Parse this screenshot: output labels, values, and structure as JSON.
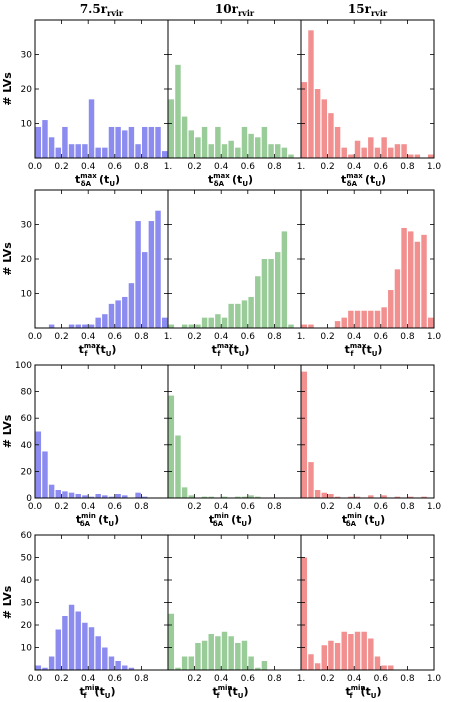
{
  "chart_data": {
    "type": "bar",
    "layout": "4x3 grid of histograms",
    "column_titles": [
      "7.5r",
      "10r",
      "15r"
    ],
    "column_title_subscript": "rvir",
    "ylabel": "# LVs",
    "colors": [
      "#8c8cf0",
      "#99cc99",
      "#f29090"
    ],
    "bin_edges_start": 0.0,
    "bin_width": 0.05,
    "xlim": [
      0.0,
      1.0
    ],
    "rows": [
      {
        "ylim": [
          0,
          40
        ],
        "yticks": [
          "10",
          "20",
          "30"
        ],
        "xlabel_base": "t",
        "xlabel_sup": "max",
        "xlabel_sub": "δA",
        "xlabel_tail": "(t",
        "xlabel_tail_sub": "U",
        "xlabel_close": ")",
        "panels": [
          {
            "xticks": [
              "0.0",
              "0.2",
              "0.4",
              "0.6",
              "0.8",
              "1."
            ],
            "values": [
              9,
              11,
              6,
              3,
              9,
              4,
              4,
              4,
              17,
              3,
              3,
              9,
              9,
              8,
              9,
              4,
              9,
              9,
              9,
              2
            ]
          },
          {
            "xticks": [
              "0.2",
              "0.4",
              "0.6",
              "0.8",
              "1."
            ],
            "values": [
              17,
              27,
              12,
              8,
              6,
              9,
              4,
              9,
              4,
              5,
              3,
              9,
              7,
              6,
              9,
              4,
              4,
              3,
              1,
              0
            ]
          },
          {
            "xticks": [
              "0.2",
              "0.4",
              "0.6",
              "0.8",
              "1.0"
            ],
            "values": [
              22,
              37,
              20,
              17,
              13,
              9,
              3,
              1,
              5,
              3,
              6,
              3,
              6,
              3,
              4,
              4,
              1,
              1,
              0,
              1
            ]
          }
        ]
      },
      {
        "ylim": [
          0,
          40
        ],
        "yticks": [
          "10",
          "20",
          "30"
        ],
        "xlabel_base": "t",
        "xlabel_sup": "max",
        "xlabel_sub": "f",
        "xlabel_tail": "(t",
        "xlabel_tail_sub": "U",
        "xlabel_close": ")",
        "panels": [
          {
            "xticks": [
              "0.0",
              "0.2",
              "0.4",
              "0.6",
              "0.8",
              "1."
            ],
            "values": [
              0,
              0,
              1,
              0,
              0,
              1,
              1,
              1,
              1,
              3,
              4,
              7,
              8,
              9,
              13,
              31,
              22,
              31,
              34,
              3
            ]
          },
          {
            "xticks": [
              "0.2",
              "0.4",
              "0.6",
              "0.8",
              "1."
            ],
            "values": [
              1,
              0,
              1,
              1,
              1,
              3,
              3,
              4,
              3,
              7,
              7,
              8,
              9,
              15,
              20,
              20,
              22,
              28,
              1,
              0
            ]
          },
          {
            "xticks": [
              "0.2",
              "0.4",
              "0.6",
              "0.8",
              "1.0"
            ],
            "values": [
              1,
              1,
              0,
              0,
              0,
              2,
              3,
              5,
              5,
              5,
              5,
              5,
              6,
              11,
              17,
              29,
              28,
              25,
              27,
              3
            ]
          }
        ]
      },
      {
        "ylim": [
          0,
          100
        ],
        "yticks": [
          "0",
          "20",
          "40",
          "60",
          "80",
          "100"
        ],
        "xlabel_base": "t",
        "xlabel_sup": "min",
        "xlabel_sub": "δA",
        "xlabel_tail": "(t",
        "xlabel_tail_sub": "U",
        "xlabel_close": ")",
        "panels": [
          {
            "xticks": [
              "0.0",
              "0.2",
              "0.4",
              "0.6",
              "0.8"
            ],
            "values": [
              50,
              35,
              10,
              6,
              5,
              4,
              3,
              2,
              1,
              3,
              2,
              1,
              3,
              2,
              0,
              4,
              1,
              0,
              0,
              0
            ]
          },
          {
            "xticks": [
              "0.2",
              "0.4",
              "0.6",
              "0.8"
            ],
            "values": [
              77,
              47,
              8,
              2,
              0,
              1,
              1,
              0,
              1,
              0,
              1,
              1,
              2,
              1,
              0,
              0,
              0,
              0,
              0,
              0
            ]
          },
          {
            "xticks": [
              "0.2",
              "0.4",
              "0.6",
              "0.8",
              "1.0"
            ],
            "values": [
              95,
              27,
              6,
              4,
              3,
              1,
              0,
              1,
              1,
              0,
              2,
              0,
              2,
              0,
              1,
              0,
              1,
              0,
              1,
              0
            ]
          }
        ]
      },
      {
        "ylim": [
          0,
          60
        ],
        "yticks": [
          "10",
          "20",
          "30",
          "40",
          "50",
          "60"
        ],
        "xlabel_base": "t",
        "xlabel_sup": "min",
        "xlabel_sub": "f",
        "xlabel_tail": "(t",
        "xlabel_tail_sub": "U",
        "xlabel_close": ")",
        "panels": [
          {
            "xticks": [
              "0.0",
              "0.2",
              "0.4",
              "0.6",
              "0.8"
            ],
            "values": [
              2,
              1,
              6,
              18,
              24,
              29,
              26,
              21,
              19,
              15,
              10,
              6,
              4,
              2,
              1,
              0,
              0,
              0,
              0,
              0
            ]
          },
          {
            "xticks": [
              "0.2",
              "0.4",
              "0.6",
              "0.8",
              "1."
            ],
            "values": [
              25,
              1,
              6,
              6,
              12,
              13,
              16,
              15,
              17,
              15,
              12,
              13,
              6,
              1,
              4,
              0,
              0,
              0,
              0,
              0
            ]
          },
          {
            "xticks": [
              "0.2",
              "0.4",
              "0.6",
              "0.8",
              "1.0"
            ],
            "values": [
              50,
              7,
              3,
              11,
              13,
              12,
              17,
              16,
              17,
              17,
              14,
              6,
              2,
              2,
              0,
              0,
              0,
              0,
              0,
              0
            ]
          }
        ]
      }
    ]
  }
}
